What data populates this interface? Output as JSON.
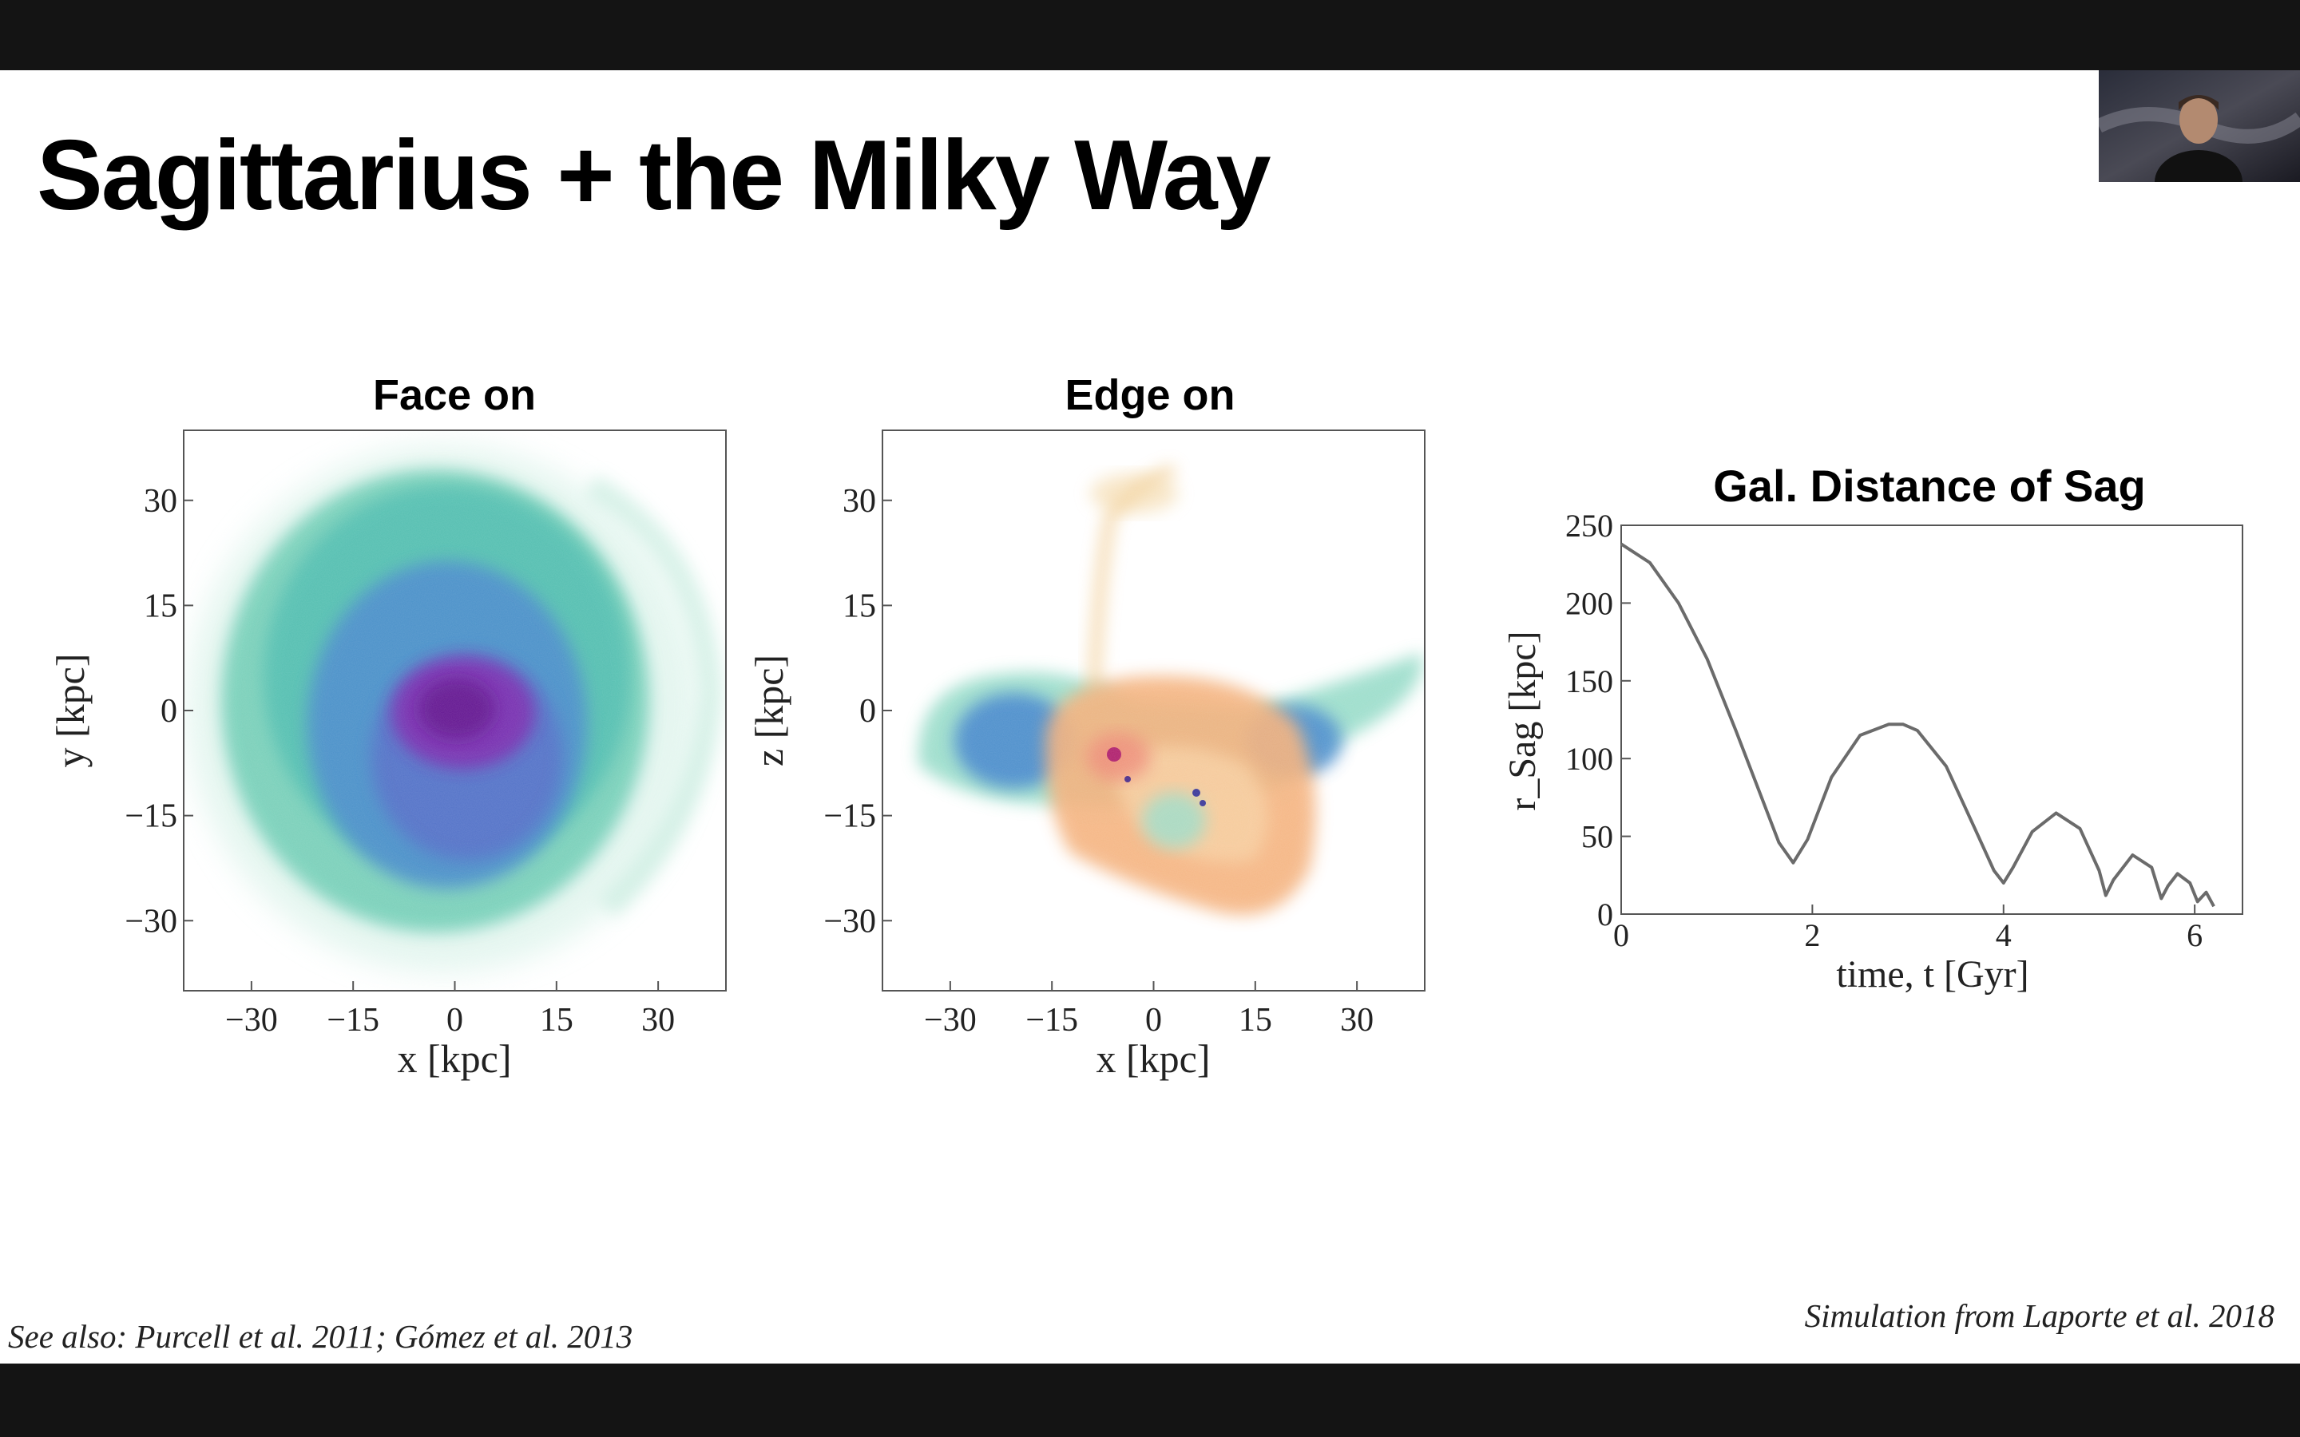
{
  "slide": {
    "title": "Sagittarius + the Milky Way",
    "citation_left": "See also: Purcell et al. 2011;  Gómez et al. 2013",
    "citation_right": "Simulation from Laporte et al. 2018"
  },
  "webcam": {
    "icon": "presenter-video"
  },
  "chart_data": [
    {
      "type": "heatmap",
      "title": "Face on",
      "xlabel": "x [kpc]",
      "ylabel": "y [kpc]",
      "xlim": [
        -40,
        40
      ],
      "ylim": [
        -40,
        40
      ],
      "xticks": [
        "−30",
        "−15",
        "0",
        "15",
        "30"
      ],
      "yticks": [
        "30",
        "15",
        "0",
        "−15",
        "−30"
      ],
      "colormap": [
        "#9bd9c2",
        "#5fc2b0",
        "#4f84c6",
        "#6b5fc8",
        "#7a2aa8"
      ]
    },
    {
      "type": "heatmap",
      "title": "Edge on",
      "xlabel": "x [kpc]",
      "ylabel": "z [kpc]",
      "xlim": [
        -40,
        40
      ],
      "ylim": [
        -40,
        40
      ],
      "xticks": [
        "−30",
        "−15",
        "0",
        "15",
        "30"
      ],
      "yticks": [
        "30",
        "15",
        "0",
        "−15",
        "−30"
      ],
      "colormaps": {
        "milky_way": [
          "#9bd9c2",
          "#5fc2b0",
          "#4f84c6",
          "#3a5bb5"
        ],
        "sagittarius": [
          "#f6d28a",
          "#f2a672",
          "#ee8a78",
          "#b0226e"
        ]
      }
    },
    {
      "type": "line",
      "title": "Gal. Distance of Sag",
      "xlabel": "time, t [Gyr]",
      "ylabel": "r_Sag [kpc]",
      "xlim": [
        0,
        6.5
      ],
      "ylim": [
        0,
        250
      ],
      "xticks": [
        0,
        2,
        4,
        6
      ],
      "yticks": [
        0,
        50,
        100,
        150,
        200,
        250
      ],
      "color": "#6b6b6b",
      "series": [
        {
          "x": [
            0,
            0.3,
            0.6,
            0.9,
            1.2,
            1.45,
            1.65,
            1.8,
            1.95,
            2.2,
            2.5,
            2.8,
            2.95,
            3.1,
            3.4,
            3.7,
            3.9,
            4.0,
            4.1,
            4.3,
            4.55,
            4.8,
            5.0,
            5.07,
            5.15,
            5.35,
            5.55,
            5.65,
            5.72,
            5.82,
            5.95,
            6.03,
            6.12,
            6.2
          ],
          "y": [
            238,
            226,
            200,
            164,
            118,
            78,
            46,
            33,
            48,
            88,
            115,
            122,
            122,
            118,
            95,
            55,
            28,
            20,
            30,
            53,
            65,
            55,
            28,
            12,
            22,
            38,
            30,
            10,
            18,
            26,
            20,
            8,
            14,
            5
          ]
        }
      ]
    }
  ]
}
